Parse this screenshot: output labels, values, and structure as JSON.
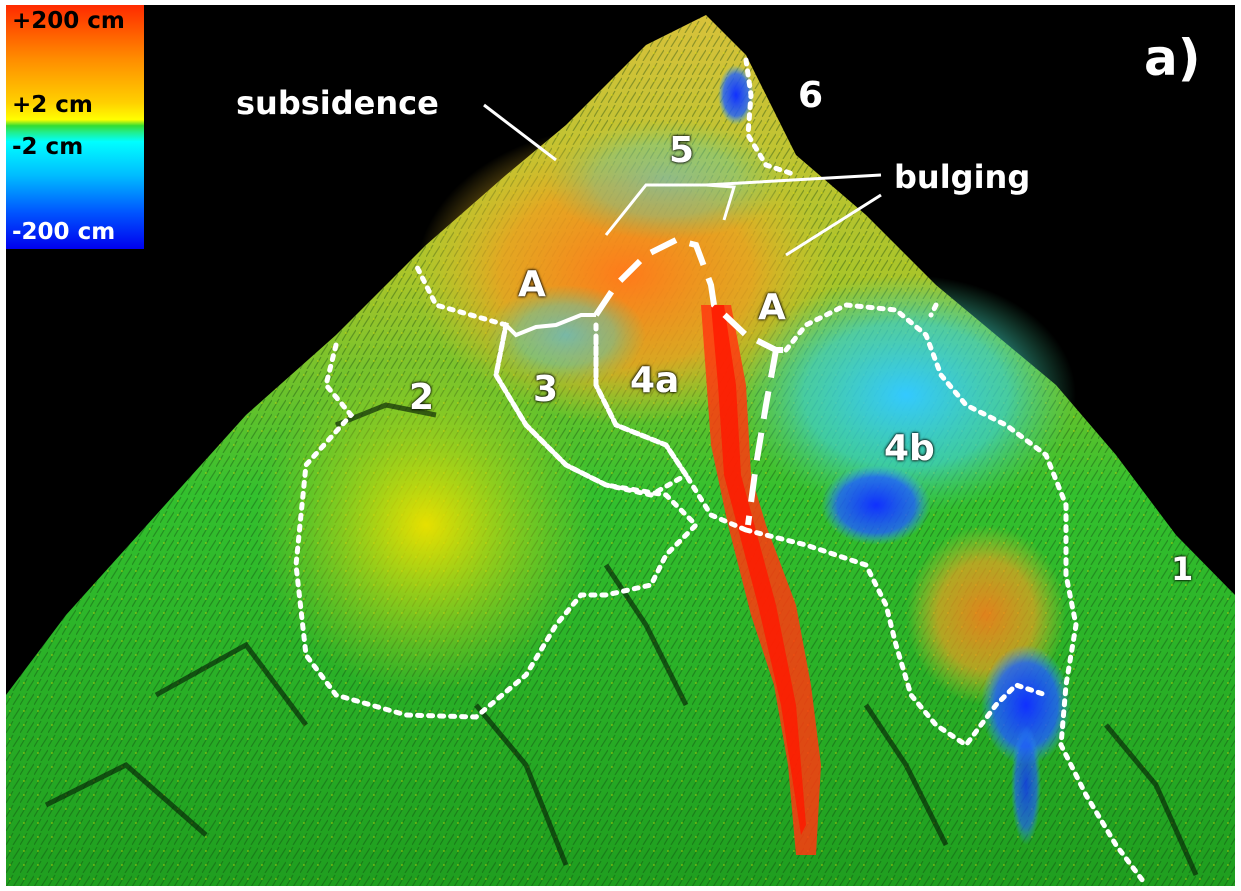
{
  "figure": {
    "panel_label": "a)",
    "legend": {
      "max_label": "+200 cm",
      "upper_label": "+2 cm",
      "lower_label": "-2 cm",
      "min_label": "-200 cm",
      "colors": [
        "#ff2a00",
        "#ff8c00",
        "#ffff00",
        "#33dd33",
        "#00ffff",
        "#0055ff",
        "#0000ee"
      ]
    },
    "annotations": {
      "subsidence": "subsidence",
      "bulging": "bulging"
    },
    "zones": {
      "z1": "1",
      "z2": "2",
      "z3": "3",
      "z4a": "4a",
      "z4b": "4b",
      "z5": "5",
      "z6": "6",
      "a_left": "A",
      "a_right": "A"
    },
    "colors": {
      "background": "#000000",
      "stable": "#2fc22f",
      "uplift": "#ff3300",
      "subsidence_color": "#0033ee",
      "boundary": "#ffffff"
    }
  }
}
